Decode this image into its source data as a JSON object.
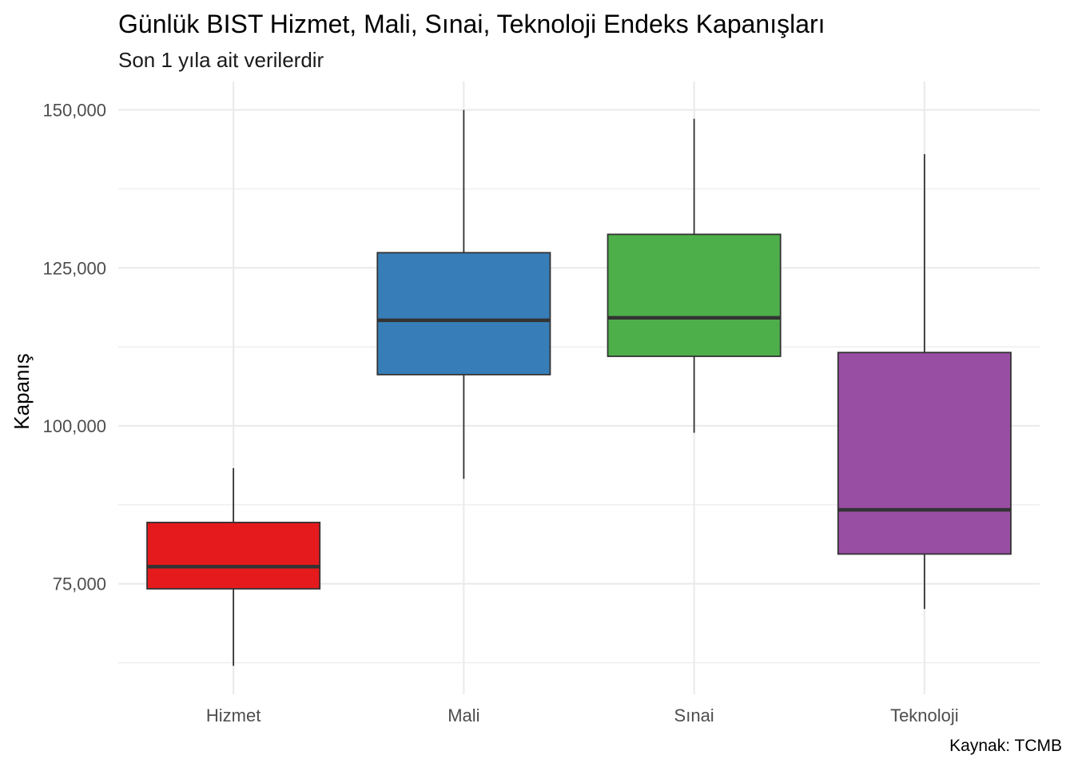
{
  "chart_data": {
    "type": "boxplot",
    "title": "Günlük BIST Hizmet, Mali, Sınai, Teknoloji Endeks Kapanışları",
    "subtitle": "Son 1 yıla ait verilerdir",
    "xlabel": "",
    "ylabel": "Kapanış",
    "caption": "Kaynak: TCMB",
    "ylim": [
      57500,
      154500
    ],
    "y_ticks": [
      75000,
      100000,
      125000,
      150000
    ],
    "y_tick_labels": [
      "75,000",
      "100,000",
      "125,000",
      "150,000"
    ],
    "y_minor_ticks": [
      62500,
      87500,
      112500,
      137500
    ],
    "grid": true,
    "legend": "none",
    "categories": [
      "Hizmet",
      "Mali",
      "Sınai",
      "Teknoloji"
    ],
    "series": [
      {
        "name": "Hizmet",
        "min": 62000,
        "q1": 74200,
        "median": 77700,
        "q3": 84700,
        "max": 93300,
        "color": "#E41A1C"
      },
      {
        "name": "Mali",
        "min": 91600,
        "q1": 108100,
        "median": 116700,
        "q3": 127400,
        "max": 150000,
        "color": "#377EB8"
      },
      {
        "name": "Sınai",
        "min": 98900,
        "q1": 111000,
        "median": 117100,
        "q3": 130300,
        "max": 148600,
        "color": "#4DAF4A"
      },
      {
        "name": "Teknoloji",
        "min": 71000,
        "q1": 79700,
        "median": 86700,
        "q3": 111600,
        "max": 143000,
        "color": "#984EA3"
      }
    ]
  }
}
